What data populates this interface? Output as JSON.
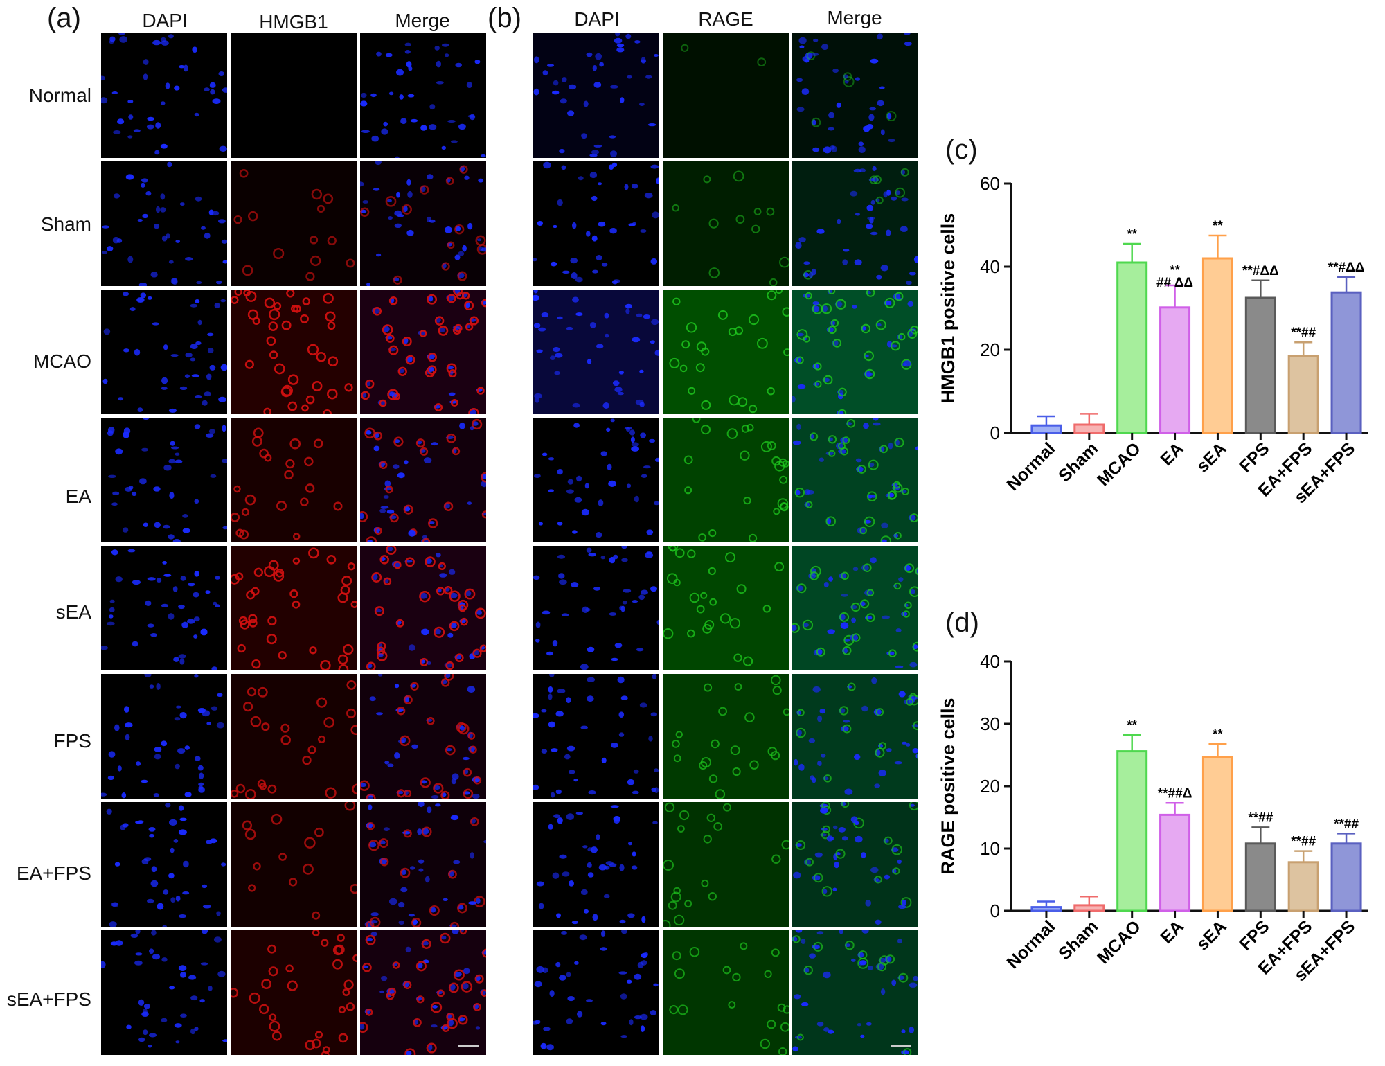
{
  "panels": {
    "a": {
      "letter": "(a)",
      "columns": [
        "DAPI",
        "HMGB1",
        "Merge"
      ],
      "rows": [
        "Normal",
        "Sham",
        "MCAO",
        "EA",
        "sEA",
        "FPS",
        "EA+FPS",
        "sEA+FPS"
      ]
    },
    "b": {
      "letter": "(b)",
      "columns": [
        "DAPI",
        "RAGE",
        "Merge"
      ]
    },
    "c": {
      "letter": "(c)"
    },
    "d": {
      "letter": "(d)"
    }
  },
  "colors": {
    "dapi": "#1a2bff",
    "hmgb1": "#d21010",
    "rage": "#1ec81e",
    "series": [
      "#4a5ee8",
      "#ef6b6b",
      "#4fd84f",
      "#d060e8",
      "#ffa04a",
      "#5a5a5a",
      "#c8a070",
      "#5a60c0"
    ],
    "fills": [
      "#9fb0f5",
      "#f7b3b3",
      "#a6ee9c",
      "#e6a9f2",
      "#ffcc94",
      "#8a8a8a",
      "#ddc3a0",
      "#8f96d8"
    ]
  },
  "chart_data": [
    {
      "type": "bar",
      "panel": "(c)",
      "ylabel": "HMGB1 positive cells",
      "ylim": [
        0,
        60
      ],
      "yticks": [
        0,
        20,
        40,
        60
      ],
      "categories": [
        "Normal",
        "Sham",
        "MCAO",
        "EA",
        "sEA",
        "FPS",
        "EA+FPS",
        "sEA+FPS"
      ],
      "values": [
        1.8,
        2.0,
        41.0,
        30.2,
        42.0,
        32.5,
        18.5,
        33.8
      ],
      "errors": [
        2.2,
        2.6,
        4.5,
        5.3,
        5.5,
        4.2,
        3.3,
        3.7
      ],
      "annotations": [
        [
          "",
          ""
        ],
        [
          "",
          ""
        ],
        [
          "**",
          ""
        ],
        [
          "**",
          "## ΔΔ"
        ],
        [
          "**",
          ""
        ],
        [
          "**#ΔΔ",
          ""
        ],
        [
          "**##",
          ""
        ],
        [
          "**#ΔΔ",
          ""
        ]
      ]
    },
    {
      "type": "bar",
      "panel": "(d)",
      "ylabel": "RAGE positive cells",
      "ylim": [
        0,
        40
      ],
      "yticks": [
        0,
        10,
        20,
        30,
        40
      ],
      "categories": [
        "Normal",
        "Sham",
        "MCAO",
        "EA",
        "sEA",
        "FPS",
        "EA+FPS",
        "sEA+FPS"
      ],
      "values": [
        0.6,
        0.9,
        25.6,
        15.4,
        24.7,
        10.8,
        7.8,
        10.8
      ],
      "errors": [
        0.9,
        1.4,
        2.6,
        1.9,
        2.1,
        2.6,
        1.8,
        1.6
      ],
      "annotations": [
        [
          ""
        ],
        [
          ""
        ],
        [
          "**"
        ],
        [
          "**##Δ"
        ],
        [
          "**"
        ],
        [
          "**##"
        ],
        [
          "**##"
        ],
        [
          "**##"
        ]
      ]
    }
  ]
}
